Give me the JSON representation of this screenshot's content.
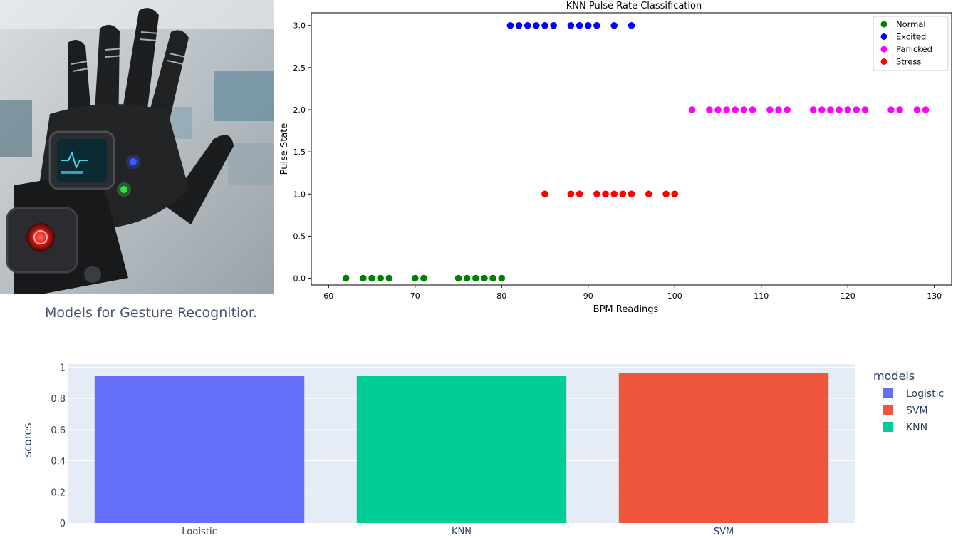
{
  "scatter_title": "KNN Pulse Rate Classification",
  "bar_section_title": "Models for Gesture Recognitior.",
  "colors": {
    "Normal": "#008000",
    "Excited": "#0000ff",
    "Panicked": "#ff00ff",
    "Stress": "#ff0000",
    "Logistic": "#636efa",
    "KNN": "#00cc96",
    "SVM": "#ef553b",
    "plot_bg": "#e5ecf6"
  },
  "chart_data": [
    {
      "type": "scatter",
      "title": "KNN Pulse Rate Classification",
      "xlabel": "BPM Readings",
      "ylabel": "Pulse State",
      "xlim": [
        58,
        132
      ],
      "ylim": [
        -0.08,
        3.15
      ],
      "xticks": [
        60,
        70,
        80,
        90,
        100,
        110,
        120,
        130
      ],
      "yticks": [
        0.0,
        0.5,
        1.0,
        1.5,
        2.0,
        2.5,
        3.0
      ],
      "yticklabels": [
        "0.0",
        "0.5",
        "1.0",
        "1.5",
        "2.0",
        "2.5",
        "3.0"
      ],
      "grid": false,
      "legend_position": "top-right",
      "series": [
        {
          "name": "Normal",
          "color": "#008000",
          "x": [
            62,
            64,
            65,
            66,
            67,
            70,
            71,
            75,
            76,
            77,
            78,
            79,
            80
          ],
          "y": [
            0,
            0,
            0,
            0,
            0,
            0,
            0,
            0,
            0,
            0,
            0,
            0,
            0
          ]
        },
        {
          "name": "Excited",
          "color": "#0000ff",
          "x": [
            81,
            82,
            83,
            84,
            85,
            86,
            88,
            89,
            90,
            91,
            93,
            95
          ],
          "y": [
            3,
            3,
            3,
            3,
            3,
            3,
            3,
            3,
            3,
            3,
            3,
            3
          ]
        },
        {
          "name": "Panicked",
          "color": "#ff00ff",
          "x": [
            102,
            104,
            105,
            106,
            107,
            108,
            109,
            111,
            112,
            113,
            116,
            117,
            118,
            119,
            120,
            121,
            122,
            125,
            126,
            128,
            129
          ],
          "y": [
            2,
            2,
            2,
            2,
            2,
            2,
            2,
            2,
            2,
            2,
            2,
            2,
            2,
            2,
            2,
            2,
            2,
            2,
            2,
            2,
            2
          ]
        },
        {
          "name": "Stress",
          "color": "#ff0000",
          "x": [
            85,
            88,
            89,
            91,
            92,
            93,
            94,
            95,
            97,
            99,
            100
          ],
          "y": [
            1,
            1,
            1,
            1,
            1,
            1,
            1,
            1,
            1,
            1,
            1
          ]
        }
      ]
    },
    {
      "type": "bar",
      "title": "",
      "xlabel": "",
      "ylabel": "scores",
      "categories": [
        "Logistic",
        "KNN",
        "SVM"
      ],
      "values": [
        0.945,
        0.945,
        0.962
      ],
      "colors": [
        "#636efa",
        "#00cc96",
        "#ef553b"
      ],
      "ylim": [
        0,
        1.02
      ],
      "yticks": [
        0,
        0.2,
        0.4,
        0.6,
        0.8,
        1
      ],
      "yticklabels": [
        "0",
        "0.2",
        "0.4",
        "0.6",
        "0.8",
        "1"
      ],
      "grid": true,
      "legend_title": "models",
      "legend_position": "right",
      "legend_entries": [
        {
          "name": "Logistic",
          "color": "#636efa"
        },
        {
          "name": "SVM",
          "color": "#ef553b"
        },
        {
          "name": "KNN",
          "color": "#00cc96"
        }
      ]
    }
  ]
}
